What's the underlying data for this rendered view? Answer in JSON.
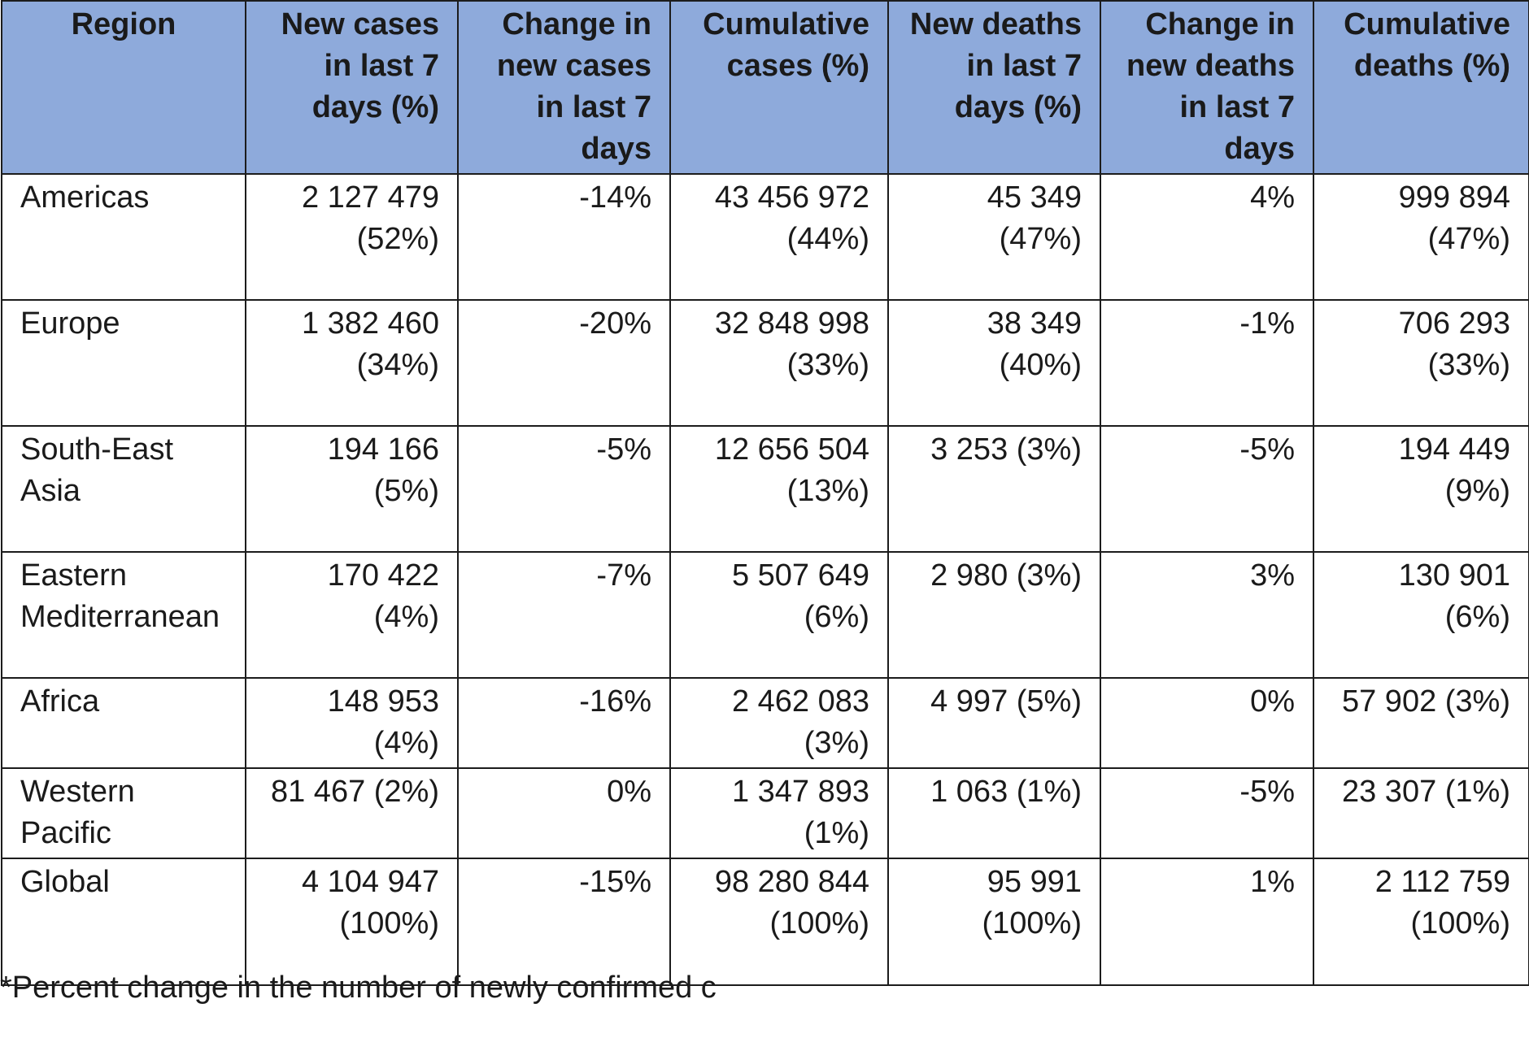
{
  "table": {
    "headers": [
      "Region",
      "New cases in last 7 days (%)",
      "Change in new cases in last 7 days",
      "Cumulative cases (%)",
      "New deaths in last 7 days (%)",
      "Change in new deaths in last 7 days",
      "Cumulative deaths (%)"
    ],
    "rows": [
      [
        "Americas",
        "2 127 479 (52%)",
        "-14%",
        "43 456 972 (44%)",
        "45 349 (47%)",
        "4%",
        "999 894 (47%)"
      ],
      [
        "Europe",
        "1 382 460 (34%)",
        "-20%",
        "32 848 998 (33%)",
        "38 349 (40%)",
        "-1%",
        "706 293 (33%)"
      ],
      [
        "South-East Asia",
        "194 166 (5%)",
        "-5%",
        "12 656 504 (13%)",
        "3 253 (3%)",
        "-5%",
        "194 449 (9%)"
      ],
      [
        "Eastern Mediterranean",
        "170 422 (4%)",
        "-7%",
        "5 507 649 (6%)",
        "2 980 (3%)",
        "3%",
        "130 901 (6%)"
      ],
      [
        "Africa",
        "148 953 (4%)",
        "-16%",
        "2 462 083 (3%)",
        "4 997 (5%)",
        "0%",
        "57 902 (3%)"
      ],
      [
        "Western Pacific",
        "81 467 (2%)",
        "0%",
        "1 347 893 (1%)",
        "1 063 (1%)",
        "-5%",
        "23 307 (1%)"
      ],
      [
        "Global",
        "4 104 947 (100%)",
        "-15%",
        "98 280 844 (100%)",
        "95 991 (100%)",
        "1%",
        "2 112 759 (100%)"
      ]
    ]
  },
  "footnote": "*Percent change in the number of newly confirmed c",
  "colors": {
    "header_background": "#8eaadb",
    "border": "#1c1c1c",
    "text": "#1a1a1a"
  }
}
